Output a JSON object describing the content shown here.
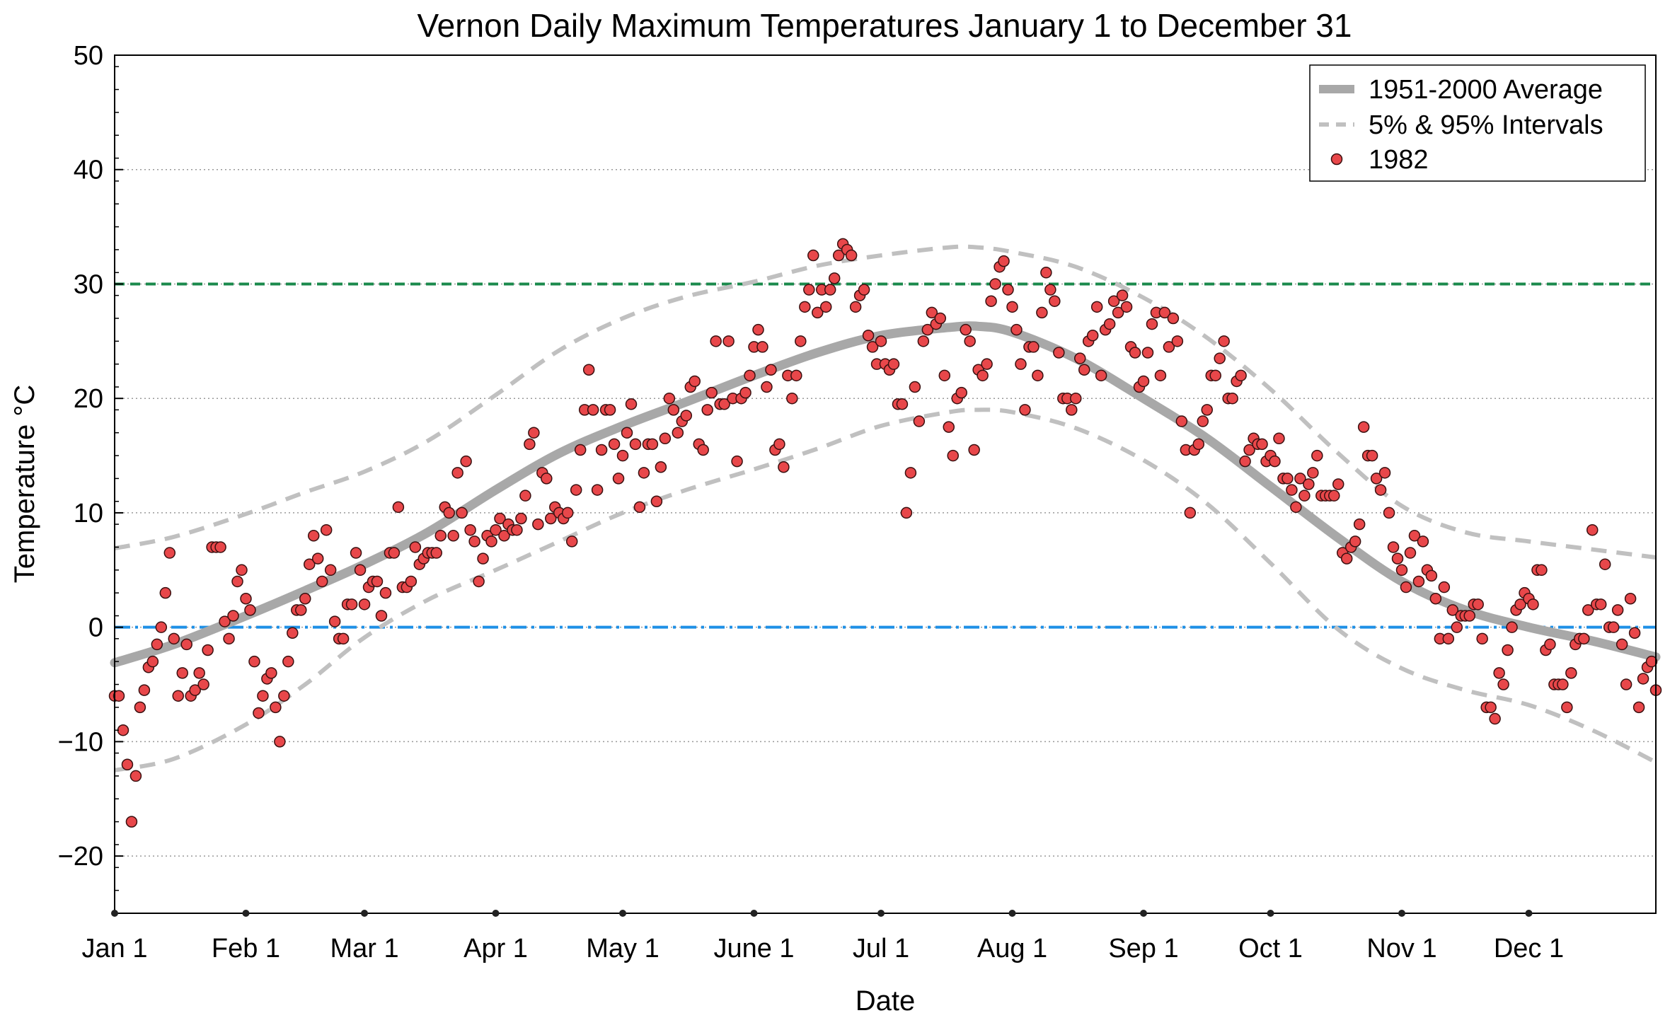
{
  "chart_data": {
    "type": "scatter",
    "title": "Vernon Daily Maximum Temperatures January 1 to December 31",
    "xlabel": "Date",
    "ylabel": "Temperature °C",
    "ylim": [
      -25,
      50
    ],
    "xlim_day": [
      1,
      365
    ],
    "y_ticks": [
      -20,
      -10,
      0,
      10,
      20,
      30,
      40,
      50
    ],
    "y_tick_labels": [
      "−20",
      "−10",
      "0",
      "10",
      "20",
      "30",
      "40",
      "50"
    ],
    "x_ticks": [
      {
        "label": "Jan 1",
        "day": 1
      },
      {
        "label": "Feb 1",
        "day": 32
      },
      {
        "label": "Mar 1",
        "day": 60
      },
      {
        "label": "Apr 1",
        "day": 91
      },
      {
        "label": "May 1",
        "day": 121
      },
      {
        "label": "June 1",
        "day": 152
      },
      {
        "label": "Jul 1",
        "day": 182
      },
      {
        "label": "Aug 1",
        "day": 213
      },
      {
        "label": "Sep 1",
        "day": 244
      },
      {
        "label": "Oct 1",
        "day": 274
      },
      {
        "label": "Nov 1",
        "day": 305
      },
      {
        "label": "Dec 1",
        "day": 335
      }
    ],
    "grid": "horizontal dotted",
    "legend_position": "top-right",
    "reference_lines": [
      {
        "y": 30,
        "color": "#1b8a4c",
        "style": "dashed"
      },
      {
        "y": 0,
        "color": "#1e90e6",
        "style": "dash-dot"
      }
    ],
    "series": [
      {
        "name": "1951-2000 Average",
        "style": "thick line",
        "color": "#a8a8a8",
        "x": [
          1,
          15,
          32,
          46,
          60,
          75,
          91,
          106,
          121,
          136,
          152,
          167,
          182,
          198,
          205,
          213,
          228,
          244,
          259,
          274,
          290,
          305,
          320,
          335,
          350,
          365
        ],
        "values": [
          -3.1,
          -1.5,
          1.0,
          3.2,
          5.5,
          8.3,
          12.0,
          15.2,
          17.6,
          19.7,
          22.0,
          24.0,
          25.5,
          26.2,
          26.3,
          25.8,
          23.5,
          20.0,
          16.5,
          12.3,
          7.8,
          4.0,
          1.5,
          0.0,
          -1.2,
          -2.6
        ]
      },
      {
        "name": "5% & 95% Intervals",
        "style": "dashed line",
        "color": "#c0c0c0",
        "x": [
          1,
          15,
          32,
          46,
          60,
          75,
          91,
          106,
          121,
          136,
          152,
          167,
          182,
          198,
          205,
          213,
          228,
          244,
          259,
          274,
          290,
          305,
          320,
          335,
          350,
          365
        ],
        "values": [
          6.9,
          7.9,
          9.9,
          11.8,
          13.6,
          16.3,
          20.3,
          24.2,
          27.0,
          28.9,
          30.2,
          31.6,
          32.5,
          33.2,
          33.2,
          32.8,
          31.5,
          28.8,
          25.3,
          20.8,
          15.2,
          10.6,
          8.3,
          7.5,
          6.8,
          6.1
        ]
      },
      {
        "name": "",
        "style": "dashed line",
        "color": "#c0c0c0",
        "x": [
          1,
          15,
          32,
          46,
          60,
          75,
          91,
          106,
          121,
          136,
          152,
          167,
          182,
          198,
          205,
          213,
          228,
          244,
          259,
          274,
          290,
          305,
          320,
          335,
          350,
          365
        ],
        "values": [
          -12.5,
          -11.5,
          -8.5,
          -5.0,
          -0.9,
          2.4,
          5.0,
          7.5,
          10.0,
          12.0,
          13.8,
          15.6,
          17.6,
          18.8,
          19.0,
          18.8,
          17.4,
          14.6,
          10.8,
          5.6,
          -0.2,
          -3.6,
          -5.5,
          -6.8,
          -9.0,
          -11.8
        ]
      },
      {
        "name": "1982",
        "style": "markers",
        "color": "#e8474a",
        "x": [
          1,
          2,
          3,
          4,
          5,
          6,
          7,
          8,
          9,
          10,
          11,
          12,
          13,
          14,
          15,
          16,
          17,
          18,
          19,
          20,
          21,
          22,
          23,
          24,
          25,
          26,
          27,
          28,
          29,
          30,
          31,
          32,
          33,
          34,
          35,
          36,
          37,
          38,
          39,
          40,
          41,
          42,
          43,
          44,
          45,
          46,
          47,
          48,
          49,
          50,
          51,
          52,
          53,
          54,
          55,
          56,
          57,
          58,
          59,
          60,
          61,
          62,
          63,
          64,
          65,
          66,
          67,
          68,
          69,
          70,
          71,
          72,
          73,
          74,
          75,
          76,
          77,
          78,
          79,
          80,
          81,
          82,
          83,
          84,
          85,
          86,
          87,
          88,
          89,
          90,
          91,
          92,
          93,
          94,
          95,
          96,
          97,
          98,
          99,
          100,
          101,
          102,
          103,
          104,
          105,
          106,
          107,
          108,
          109,
          110,
          111,
          112,
          113,
          114,
          115,
          116,
          117,
          118,
          119,
          120,
          121,
          122,
          123,
          124,
          125,
          126,
          127,
          128,
          129,
          130,
          131,
          132,
          133,
          134,
          135,
          136,
          137,
          138,
          139,
          140,
          141,
          142,
          143,
          144,
          145,
          146,
          147,
          148,
          149,
          150,
          151,
          152,
          153,
          154,
          155,
          156,
          157,
          158,
          159,
          160,
          161,
          162,
          163,
          164,
          165,
          166,
          167,
          168,
          169,
          170,
          171,
          172,
          173,
          174,
          175,
          176,
          177,
          178,
          179,
          180,
          181,
          182,
          183,
          184,
          185,
          186,
          187,
          188,
          189,
          190,
          191,
          192,
          193,
          194,
          195,
          196,
          197,
          198,
          199,
          200,
          201,
          202,
          203,
          204,
          205,
          206,
          207,
          208,
          209,
          210,
          211,
          212,
          213,
          214,
          215,
          216,
          217,
          218,
          219,
          220,
          221,
          222,
          223,
          224,
          225,
          226,
          227,
          228,
          229,
          230,
          231,
          232,
          233,
          234,
          235,
          236,
          237,
          238,
          239,
          240,
          241,
          242,
          243,
          244,
          245,
          246,
          247,
          248,
          249,
          250,
          251,
          252,
          253,
          254,
          255,
          256,
          257,
          258,
          259,
          260,
          261,
          262,
          263,
          264,
          265,
          266,
          267,
          268,
          269,
          270,
          271,
          272,
          273,
          274,
          275,
          276,
          277,
          278,
          279,
          280,
          281,
          282,
          283,
          284,
          285,
          286,
          287,
          288,
          289,
          290,
          291,
          292,
          293,
          294,
          295,
          296,
          297,
          298,
          299,
          300,
          301,
          302,
          303,
          304,
          305,
          306,
          307,
          308,
          309,
          310,
          311,
          312,
          313,
          314,
          315,
          316,
          317,
          318,
          319,
          320,
          321,
          322,
          323,
          324,
          325,
          326,
          327,
          328,
          329,
          330,
          331,
          332,
          333,
          334,
          335,
          336,
          337,
          338,
          339,
          340,
          341,
          342,
          343,
          344,
          345,
          346,
          347,
          348,
          349,
          350,
          351,
          352,
          353,
          354,
          355,
          356,
          357,
          358,
          359,
          360,
          361,
          362,
          363,
          364,
          365
        ],
        "values": [
          -6,
          -6,
          -9,
          -12,
          -17,
          -13,
          -7,
          -5.5,
          -3.5,
          -3,
          -1.5,
          0,
          3,
          6.5,
          -1,
          -6,
          -4,
          -1.5,
          -6,
          -5.5,
          -4,
          -5,
          -2,
          7,
          7,
          7,
          0.5,
          -1,
          1,
          4,
          5,
          2.5,
          1.5,
          -3,
          -7.5,
          -6,
          -4.5,
          -4,
          -7,
          -10,
          -6,
          -3,
          -0.5,
          1.5,
          1.5,
          2.5,
          5.5,
          8,
          6,
          4,
          8.5,
          5,
          0.5,
          -1,
          -1,
          2,
          2,
          6.5,
          5,
          2,
          3.5,
          4,
          4,
          1,
          3,
          6.5,
          6.5,
          10.5,
          3.5,
          3.5,
          4,
          7,
          5.5,
          6,
          6.5,
          6.5,
          6.5,
          8,
          10.5,
          10,
          8,
          13.5,
          10,
          14.5,
          8.5,
          7.5,
          4,
          6,
          8,
          7.5,
          8.5,
          9.5,
          8,
          9,
          8.5,
          8.5,
          9.5,
          11.5,
          16,
          17,
          9,
          13.5,
          13,
          9.5,
          10.5,
          10,
          9.5,
          10,
          7.5,
          12,
          15.5,
          19,
          22.5,
          19,
          12,
          15.5,
          19,
          19,
          16,
          13,
          15,
          17,
          19.5,
          16,
          10.5,
          13.5,
          16,
          16,
          11,
          14,
          16.5,
          20,
          19,
          17,
          18,
          18.5,
          21,
          21.5,
          16,
          15.5,
          19,
          20.5,
          25,
          19.5,
          19.5,
          25,
          20,
          14.5,
          20,
          20.5,
          22,
          24.5,
          26,
          24.5,
          21,
          22.5,
          15.5,
          16,
          14,
          22,
          20,
          22,
          25,
          28,
          29.5,
          32.5,
          27.5,
          29.5,
          28,
          29.5,
          30.5,
          32.5,
          33.5,
          33,
          32.5,
          28,
          29,
          29.5,
          25.5,
          24.5,
          23,
          25,
          23,
          22.5,
          23,
          19.5,
          19.5,
          10,
          13.5,
          21,
          18,
          25,
          26,
          27.5,
          26.5,
          27,
          22,
          17.5,
          15,
          20,
          20.5,
          26,
          25,
          15.5,
          22.5,
          22,
          23,
          28.5,
          30,
          31.5,
          32,
          29.5,
          28,
          26,
          23,
          19,
          24.5,
          24.5,
          22,
          27.5,
          31,
          29.5,
          28.5,
          24,
          20,
          20,
          19,
          20,
          23.5,
          22.5,
          25,
          25.5,
          28,
          22,
          26,
          26.5,
          28.5,
          27.5,
          29,
          28,
          24.5,
          24,
          21,
          21.5,
          24,
          26.5,
          27.5,
          22,
          27.5,
          24.5,
          27,
          25,
          18,
          15.5,
          10,
          15.5,
          16,
          18,
          19,
          22,
          22,
          23.5,
          25,
          20,
          20,
          21.5,
          22,
          14.5,
          15.5,
          16.5,
          16,
          16,
          14.5,
          15,
          14.5,
          16.5,
          13,
          13,
          12,
          10.5,
          13,
          11.5,
          12.5,
          13.5,
          15,
          11.5,
          11.5,
          11.5,
          11.5,
          12.5,
          6.5,
          6,
          7,
          7.5,
          9,
          17.5,
          15,
          15,
          13,
          12,
          13.5,
          10,
          7,
          6,
          5,
          3.5,
          6.5,
          8,
          4,
          7.5,
          5,
          4.5,
          2.5,
          -1,
          3.5,
          -1,
          1.5,
          0,
          1,
          1,
          1,
          2,
          2,
          -1,
          -7,
          -7,
          -8,
          -4,
          -5,
          -2,
          0,
          1.5,
          2,
          3,
          2.5,
          2,
          5,
          5,
          -2,
          -1.5,
          -5,
          -5,
          -5,
          -7,
          -4,
          -1.5,
          -1,
          -1,
          1.5,
          8.5,
          2,
          2,
          5.5,
          0,
          0,
          1.5,
          -1.5,
          -5,
          2.5,
          -0.5,
          -7,
          -4.5,
          -3.5,
          -3,
          -5.5
        ]
      }
    ]
  }
}
